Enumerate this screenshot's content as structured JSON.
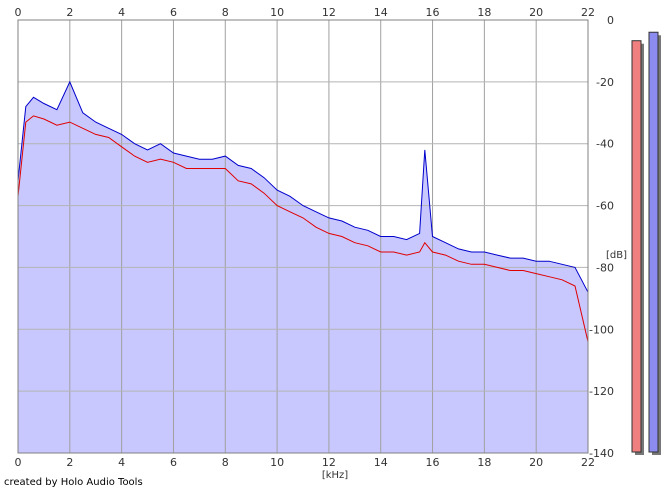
{
  "credit": "created by Holo Audio Tools",
  "chart_data": {
    "type": "area",
    "title": "",
    "xlabel": "[kHz]",
    "ylabel": "[dB]",
    "xlim": [
      0,
      22
    ],
    "ylim": [
      -140,
      0
    ],
    "x_ticks": [
      "0",
      "2",
      "4",
      "6",
      "8",
      "10",
      "12",
      "14",
      "16",
      "18",
      "20",
      "22"
    ],
    "y_ticks": [
      "0",
      "-20",
      "-40",
      "-60",
      "-80",
      "-100",
      "-120",
      "-140"
    ],
    "grid": true,
    "series": [
      {
        "color": "#e00000",
        "x": [
          0,
          0.3,
          0.6,
          1,
          1.5,
          2,
          2.5,
          3,
          3.5,
          4,
          4.5,
          5,
          5.5,
          6,
          6.5,
          7,
          7.5,
          8,
          8.5,
          9,
          9.5,
          10,
          10.5,
          11,
          11.5,
          12,
          12.5,
          13,
          13.5,
          14,
          14.5,
          15,
          15.5,
          15.7,
          16,
          16.5,
          17,
          17.5,
          18,
          18.5,
          19,
          19.5,
          20,
          20.5,
          21,
          21.5,
          22
        ],
        "values": [
          -57,
          -33,
          -31,
          -32,
          -34,
          -33,
          -35,
          -37,
          -38,
          -41,
          -44,
          -46,
          -45,
          -46,
          -48,
          -48,
          -48,
          -48,
          -52,
          -53,
          -56,
          -60,
          -62,
          -64,
          -67,
          -69,
          -70,
          -72,
          -73,
          -75,
          -75,
          -76,
          -75,
          -72,
          -75,
          -76,
          -78,
          -79,
          -79,
          -80,
          -81,
          -81,
          -82,
          -83,
          -84,
          -86,
          -104
        ]
      },
      {
        "color": "#0000cc",
        "x": [
          0,
          0.3,
          0.6,
          1,
          1.5,
          2,
          2.5,
          3,
          3.5,
          4,
          4.5,
          5,
          5.5,
          6,
          6.5,
          7,
          7.5,
          8,
          8.5,
          9,
          9.5,
          10,
          10.5,
          11,
          11.5,
          12,
          12.5,
          13,
          13.5,
          14,
          14.5,
          15,
          15.5,
          15.7,
          16,
          16.5,
          17,
          17.5,
          18,
          18.5,
          19,
          19.5,
          20,
          20.5,
          21,
          21.5,
          22
        ],
        "values": [
          -52,
          -28,
          -25,
          -27,
          -29,
          -20,
          -30,
          -33,
          -35,
          -37,
          -40,
          -42,
          -40,
          -43,
          -44,
          -45,
          -45,
          -44,
          -47,
          -48,
          -51,
          -55,
          -57,
          -60,
          -62,
          -64,
          -65,
          -67,
          -68,
          -70,
          -70,
          -71,
          -69,
          -42,
          -70,
          -72,
          -74,
          -75,
          -75,
          -76,
          -77,
          -77,
          -78,
          -78,
          -79,
          -80,
          -88
        ]
      }
    ],
    "level_meters": [
      {
        "color": "#f08080",
        "level": 0.97
      },
      {
        "color": "#8c8cf0",
        "level": 0.99
      }
    ]
  }
}
